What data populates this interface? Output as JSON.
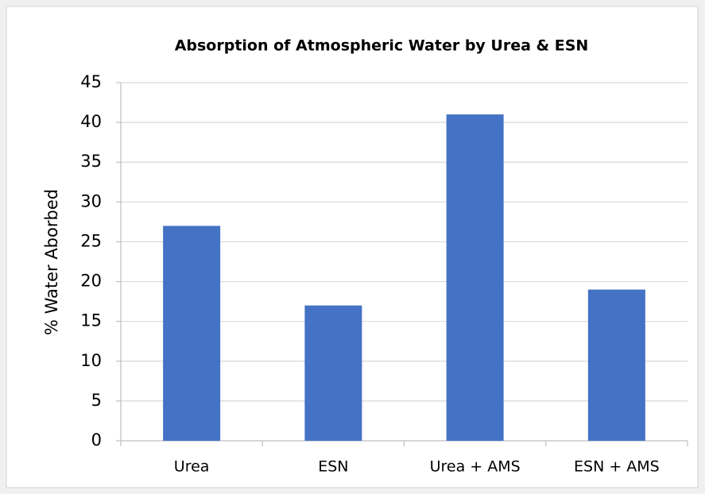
{
  "chart_data": {
    "type": "bar",
    "title": "Absorption of Atmospheric Water by Urea & ESN",
    "y_label": "% Water Aborbed",
    "categories": [
      "Urea",
      "ESN",
      "Urea + AMS",
      "ESN + AMS"
    ],
    "values": [
      27,
      17,
      41,
      19
    ],
    "color": "#4472c4",
    "ylim": [
      0,
      45
    ],
    "yticks": [
      0,
      5,
      10,
      15,
      20,
      25,
      30,
      35,
      40,
      45
    ],
    "grid": true
  }
}
